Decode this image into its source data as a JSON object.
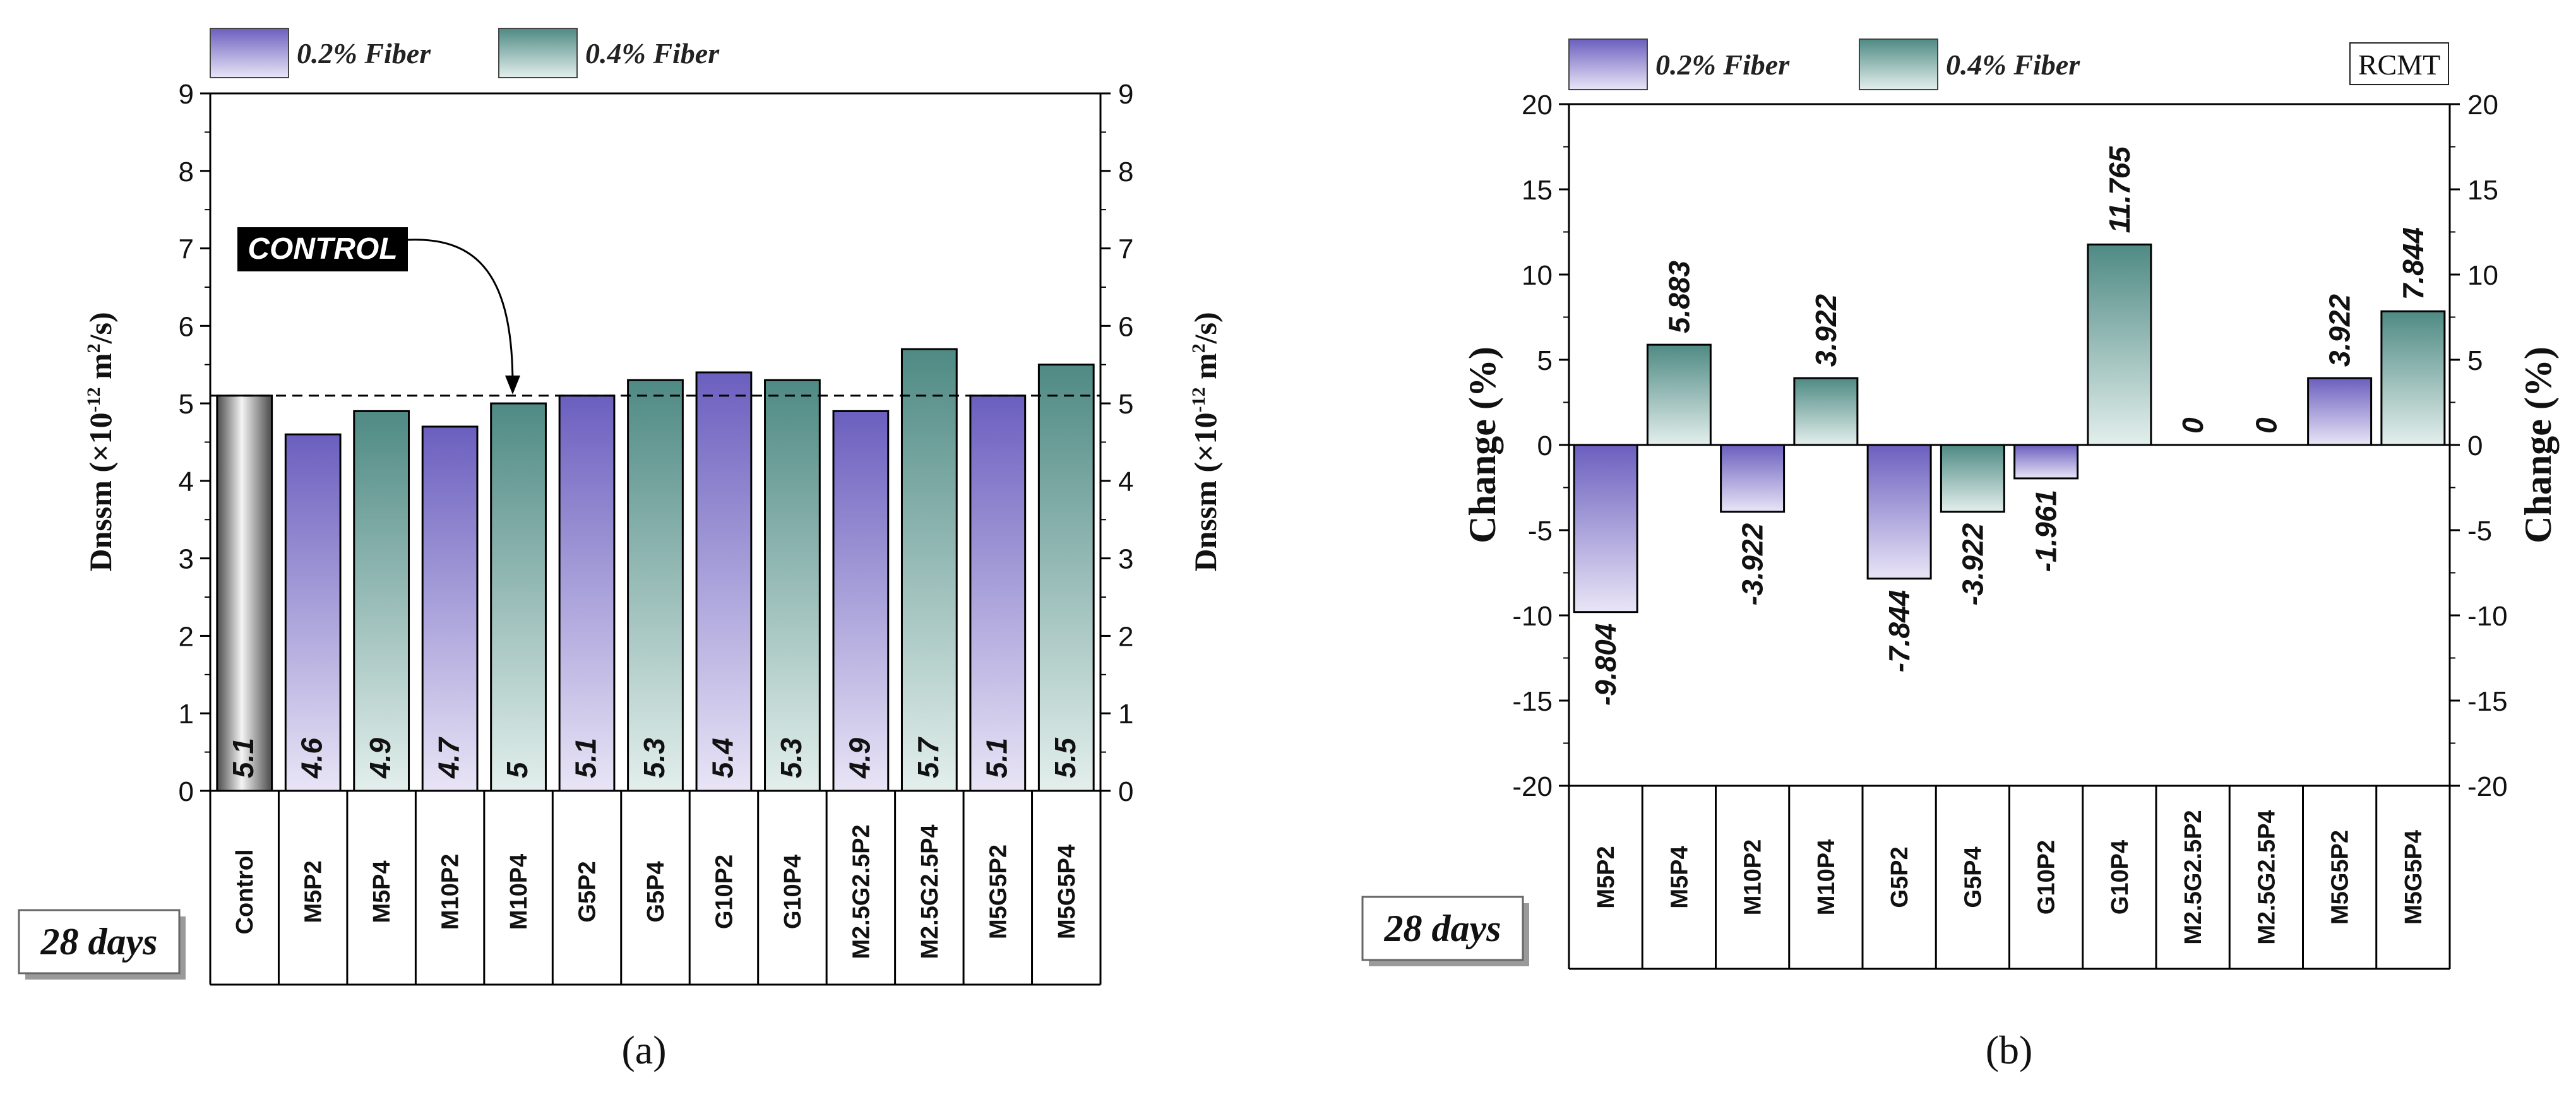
{
  "colors": {
    "fiber02_top": "#6b5fbf",
    "fiber02_bottom": "#e9e5f6",
    "fiber04_top": "#4f8a84",
    "fiber04_bottom": "#e3efec",
    "control_dark": "#4a4a4a",
    "control_light": "#f4f4f4"
  },
  "panel_a": {
    "caption": "(a)",
    "age_label": "28 days",
    "callout": "CONTROL",
    "legend": [
      {
        "label": "0.2% Fiber",
        "key": "fiber02"
      },
      {
        "label": "0.4% Fiber",
        "key": "fiber04"
      }
    ]
  },
  "panel_b": {
    "caption": "(b)",
    "age_label": "28 days",
    "badge": "RCMT",
    "legend": [
      {
        "label": "0.2% Fiber",
        "key": "fiber02"
      },
      {
        "label": "0.4% Fiber",
        "key": "fiber04"
      }
    ]
  },
  "chart_data": [
    {
      "type": "bar",
      "title": "",
      "ylabel_main": "Dnssm (×10",
      "ylabel_exp": "-12",
      "ylabel_unit": " m",
      "ylabel_sq": "2",
      "ylabel_tail": "/s)",
      "ylim": [
        0,
        9
      ],
      "yticks": [
        0,
        1,
        2,
        3,
        4,
        5,
        6,
        7,
        8,
        9
      ],
      "reference_line": 5.1,
      "categories": [
        "Control",
        "M5P2",
        "M5P4",
        "M10P2",
        "M10P4",
        "G5P2",
        "G5P4",
        "G10P2",
        "G10P4",
        "M2.5G2.5P2",
        "M2.5G2.5P4",
        "M5G5P2",
        "M5G5P4"
      ],
      "values": [
        5.1,
        4.6,
        4.9,
        4.7,
        5.0,
        5.1,
        5.3,
        5.4,
        5.3,
        4.9,
        5.7,
        5.1,
        5.5
      ],
      "value_labels": [
        "5.1",
        "4.6",
        "4.9",
        "4.7",
        "5",
        "5.1",
        "5.3",
        "5.4",
        "5.3",
        "4.9",
        "5.7",
        "5.1",
        "5.5"
      ],
      "groups": [
        "control",
        "fiber02",
        "fiber04",
        "fiber02",
        "fiber04",
        "fiber02",
        "fiber04",
        "fiber02",
        "fiber04",
        "fiber02",
        "fiber04",
        "fiber02",
        "fiber04"
      ]
    },
    {
      "type": "bar",
      "title": "",
      "ylabel": "Change (%)",
      "ylim": [
        -20,
        20
      ],
      "yticks": [
        -20,
        -15,
        -10,
        -5,
        0,
        5,
        10,
        15,
        20
      ],
      "categories": [
        "M5P2",
        "M5P4",
        "M10P2",
        "M10P4",
        "G5P2",
        "G5P4",
        "G10P2",
        "G10P4",
        "M2.5G2.5P2",
        "M2.5G2.5P4",
        "M5G5P2",
        "M5G5P4"
      ],
      "values": [
        -9.804,
        5.883,
        -3.922,
        3.922,
        -7.844,
        -3.922,
        -1.961,
        11.765,
        0,
        0,
        3.922,
        7.844
      ],
      "value_labels": [
        "-9.804",
        "5.883",
        "-3.922",
        "3.922",
        "-7.844",
        "-3.922",
        "-1.961",
        "11.765",
        "0",
        "0",
        "3.922",
        "7.844"
      ],
      "groups": [
        "fiber02",
        "fiber04",
        "fiber02",
        "fiber04",
        "fiber02",
        "fiber04",
        "fiber02",
        "fiber04",
        "fiber02",
        "fiber04",
        "fiber02",
        "fiber04"
      ]
    }
  ]
}
